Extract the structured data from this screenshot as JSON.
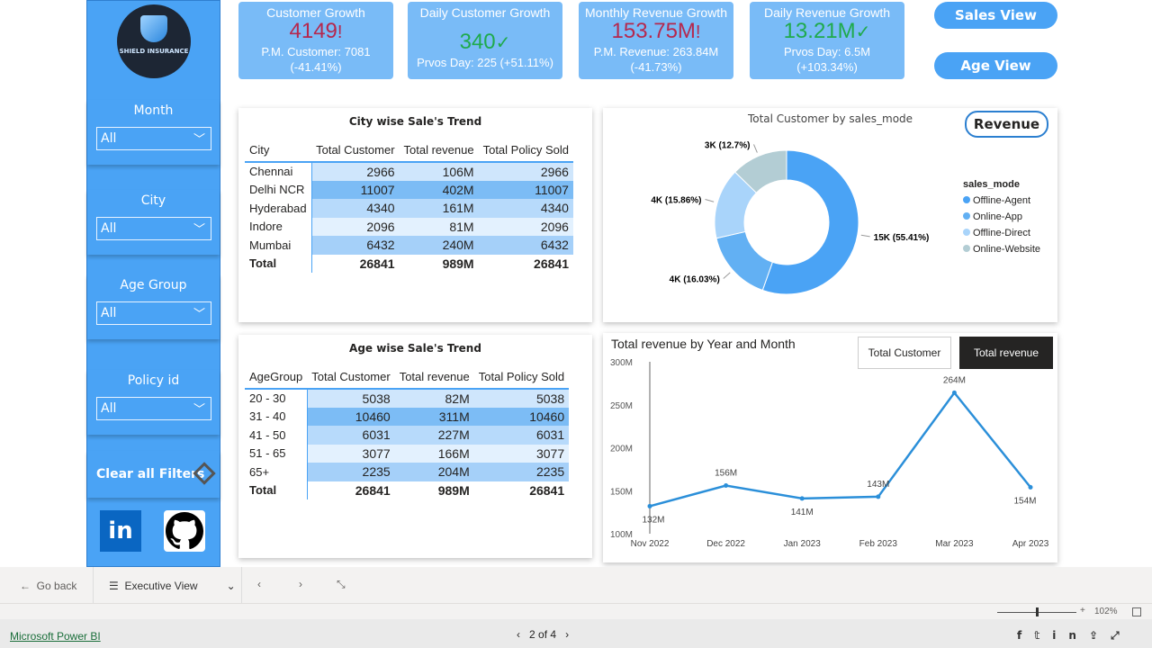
{
  "logo": {
    "text": "SHIELD INSURANCE"
  },
  "slicers": [
    {
      "label": "Month",
      "value": "All"
    },
    {
      "label": "City",
      "value": "All"
    },
    {
      "label": "Age Group",
      "value": "All"
    },
    {
      "label": "Policy id",
      "value": "All"
    }
  ],
  "clear_filters": "Clear all Filters",
  "social": {
    "linkedin": "in"
  },
  "kpis": [
    {
      "title": "Customer Growth",
      "value": "4149",
      "flag": "!",
      "status": "red",
      "sub1": "P.M. Customer: 7081",
      "sub2": "(-41.41%)"
    },
    {
      "title": "Daily Customer Growth",
      "value": "340",
      "flag": "✓",
      "status": "green",
      "sub1": "Prvos Day: 225 (+51.11%)",
      "sub2": ""
    },
    {
      "title": "Monthly Revenue Growth",
      "value": "153.75M",
      "flag": "!",
      "status": "red",
      "sub1": "P.M. Revenue: 263.84M",
      "sub2": "(-41.73%)"
    },
    {
      "title": "Daily Revenue Growth",
      "value": "13.21M",
      "flag": "✓",
      "status": "green",
      "sub1": "Prvos Day: 6.5M",
      "sub2": "(+103.34%)"
    }
  ],
  "view_buttons": {
    "sales": "Sales View",
    "age": "Age View"
  },
  "city_table": {
    "title": "City wise Sale's Trend",
    "headers": [
      "City",
      "Total Customer",
      "Total revenue",
      "Total Policy Sold"
    ],
    "rows": [
      [
        "Chennai",
        "2966",
        "106M",
        "2966"
      ],
      [
        "Delhi NCR",
        "11007",
        "402M",
        "11007"
      ],
      [
        "Hyderabad",
        "4340",
        "161M",
        "4340"
      ],
      [
        "Indore",
        "2096",
        "81M",
        "2096"
      ],
      [
        "Mumbai",
        "6432",
        "240M",
        "6432"
      ]
    ],
    "total": [
      "Total",
      "26841",
      "989M",
      "26841"
    ]
  },
  "age_table": {
    "title": "Age wise Sale's Trend",
    "headers": [
      "AgeGroup",
      "Total Customer",
      "Total revenue",
      "Total Policy Sold"
    ],
    "rows": [
      [
        "20 - 30",
        "5038",
        "82M",
        "5038"
      ],
      [
        "31 - 40",
        "10460",
        "311M",
        "10460"
      ],
      [
        "41 - 50",
        "6031",
        "227M",
        "6031"
      ],
      [
        "51 - 65",
        "3077",
        "166M",
        "3077"
      ],
      [
        "65+",
        "2235",
        "204M",
        "2235"
      ]
    ],
    "total": [
      "Total",
      "26841",
      "989M",
      "26841"
    ]
  },
  "revenue_button": "Revenue",
  "toggle": {
    "a": "Total Customer",
    "b": "Total revenue"
  },
  "chart_data": [
    {
      "type": "pie",
      "title": "Total Customer by sales_mode",
      "legend_title": "sales_mode",
      "legend_placement": "right",
      "slices": [
        {
          "name": "Offline-Agent",
          "label": "15K (55.41%)",
          "percent": 55.41,
          "color": "#4aa3f5"
        },
        {
          "name": "Online-App",
          "label": "4K (16.03%)",
          "percent": 16.03,
          "color": "#62b0f3"
        },
        {
          "name": "Offline-Direct",
          "label": "4K (15.86%)",
          "percent": 15.86,
          "color": "#a9d4fa"
        },
        {
          "name": "Online-Website",
          "label": "3K (12.7%)",
          "percent": 12.7,
          "color": "#b3cdd4"
        }
      ]
    },
    {
      "type": "line",
      "title": "Total revenue by Year and Month",
      "categories": [
        "Nov 2022",
        "Dec 2022",
        "Jan 2023",
        "Feb 2023",
        "Mar 2023",
        "Apr 2023"
      ],
      "values": [
        132,
        156,
        141,
        143,
        264,
        154
      ],
      "labels": [
        "132M",
        "156M",
        "141M",
        "143M",
        "264M",
        "154M"
      ],
      "yticks": [
        "100M",
        "150M",
        "200M",
        "250M",
        "300M"
      ],
      "ylim": [
        100,
        300
      ],
      "color": "#2b8fd9"
    }
  ],
  "bottom_bar": {
    "go_back": "Go back",
    "page_name": "Executive View",
    "zoom": "102%"
  },
  "footer": {
    "brand": "Microsoft Power BI",
    "pager": "2 of 4"
  }
}
